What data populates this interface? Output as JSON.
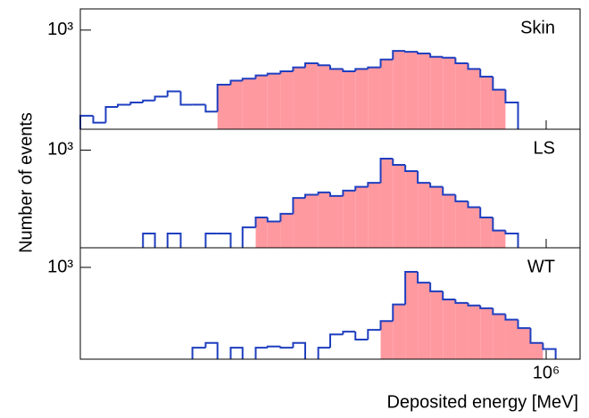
{
  "ylabel": "Number of events",
  "xlabel": "Deposited energy [MeV]",
  "chart_data": [
    {
      "type": "histogram",
      "title": "Skin",
      "xlog": true,
      "ylog": true,
      "xlim": [
        270000,
        1100000
      ],
      "ylim": [
        150,
        1500
      ],
      "yticks": [
        {
          "value": 1000,
          "label": "10³"
        }
      ],
      "bins": [
        270000,
        280000,
        290000,
        300000,
        311000,
        322000,
        333000,
        345000,
        358000,
        370000,
        384000,
        397000,
        412000,
        426000,
        442000,
        457000,
        474000,
        491000,
        508000,
        527000,
        545000,
        565000,
        585000,
        606000,
        628000,
        650000,
        673000,
        697000,
        722000,
        748000,
        775000,
        803000,
        831000,
        861000,
        892000,
        924000,
        957000,
        991000,
        1027000,
        1063000,
        1100000
      ],
      "series": [
        {
          "color": "#ff99a0",
          "style": "fill",
          "values": [
            null,
            null,
            null,
            null,
            null,
            null,
            null,
            null,
            null,
            null,
            null,
            352,
            380,
            395,
            420,
            435,
            455,
            490,
            530,
            510,
            475,
            455,
            475,
            490,
            570,
            672,
            660,
            640,
            600,
            590,
            530,
            475,
            410,
            320,
            null,
            null,
            null,
            null,
            null,
            null
          ]
        },
        {
          "color": "#1f3fbf",
          "style": "step",
          "values": [
            194,
            170,
            230,
            240,
            250,
            260,
            280,
            310,
            240,
            240,
            210,
            352,
            380,
            395,
            420,
            435,
            455,
            490,
            530,
            510,
            475,
            455,
            475,
            490,
            570,
            672,
            660,
            640,
            600,
            590,
            530,
            475,
            410,
            320,
            250,
            null,
            null,
            null,
            null,
            null
          ]
        }
      ]
    },
    {
      "type": "histogram",
      "title": "LS",
      "xlog": true,
      "ylog": true,
      "xlim": [
        270000,
        1100000
      ],
      "ylim": [
        150,
        1500
      ],
      "yticks": [
        {
          "value": 1000,
          "label": "10³"
        }
      ],
      "bins": [
        270000,
        280000,
        290000,
        300000,
        311000,
        322000,
        333000,
        345000,
        358000,
        370000,
        384000,
        397000,
        412000,
        426000,
        442000,
        457000,
        474000,
        491000,
        508000,
        527000,
        545000,
        565000,
        585000,
        606000,
        628000,
        650000,
        673000,
        697000,
        722000,
        748000,
        775000,
        803000,
        831000,
        861000,
        892000,
        924000,
        957000,
        991000,
        1027000,
        1063000,
        1100000
      ],
      "series": [
        {
          "color": "#ff99a0",
          "style": "fill",
          "values": [
            null,
            null,
            null,
            null,
            null,
            null,
            null,
            null,
            null,
            null,
            null,
            null,
            null,
            null,
            270,
            250,
            290,
            395,
            420,
            440,
            410,
            455,
            490,
            530,
            848,
            750,
            665,
            530,
            490,
            420,
            370,
            330,
            270,
            210,
            null,
            null,
            null,
            null,
            null,
            null
          ]
        },
        {
          "color": "#1f3fbf",
          "style": "step",
          "values": [
            null,
            null,
            null,
            null,
            null,
            198,
            null,
            198,
            null,
            null,
            198,
            198,
            null,
            223,
            270,
            250,
            290,
            395,
            420,
            440,
            410,
            455,
            490,
            530,
            848,
            750,
            665,
            530,
            490,
            420,
            370,
            330,
            270,
            210,
            198,
            null,
            null,
            null,
            null,
            null
          ]
        }
      ]
    },
    {
      "type": "histogram",
      "title": "WT",
      "xlog": true,
      "ylog": true,
      "xlim": [
        270000,
        1100000
      ],
      "ylim": [
        150,
        1500
      ],
      "yticks": [
        {
          "value": 1000,
          "label": "10³"
        }
      ],
      "xticks": [
        {
          "value": 1000000,
          "label": "10⁶"
        }
      ],
      "bins": [
        270000,
        280000,
        290000,
        300000,
        311000,
        322000,
        333000,
        345000,
        358000,
        370000,
        384000,
        397000,
        412000,
        426000,
        442000,
        457000,
        474000,
        491000,
        508000,
        527000,
        545000,
        565000,
        585000,
        606000,
        628000,
        650000,
        673000,
        697000,
        722000,
        748000,
        775000,
        803000,
        831000,
        861000,
        892000,
        924000,
        957000,
        991000,
        1027000,
        1063000,
        1100000
      ],
      "series": [
        {
          "color": "#ff99a0",
          "style": "fill",
          "values": [
            null,
            null,
            null,
            null,
            null,
            null,
            null,
            null,
            null,
            null,
            null,
            null,
            null,
            null,
            null,
            null,
            null,
            null,
            null,
            null,
            null,
            null,
            null,
            null,
            330,
            465,
            912,
            730,
            610,
            515,
            480,
            455,
            430,
            380,
            340,
            285,
            210,
            null,
            null,
            null
          ]
        },
        {
          "color": "#1f3fbf",
          "style": "step",
          "values": [
            null,
            null,
            null,
            null,
            null,
            null,
            null,
            null,
            null,
            190,
            210,
            null,
            190,
            null,
            190,
            195,
            190,
            210,
            null,
            190,
            250,
            265,
            225,
            275,
            330,
            465,
            912,
            730,
            610,
            515,
            480,
            455,
            430,
            380,
            340,
            285,
            210,
            185,
            null,
            null
          ]
        }
      ]
    }
  ]
}
